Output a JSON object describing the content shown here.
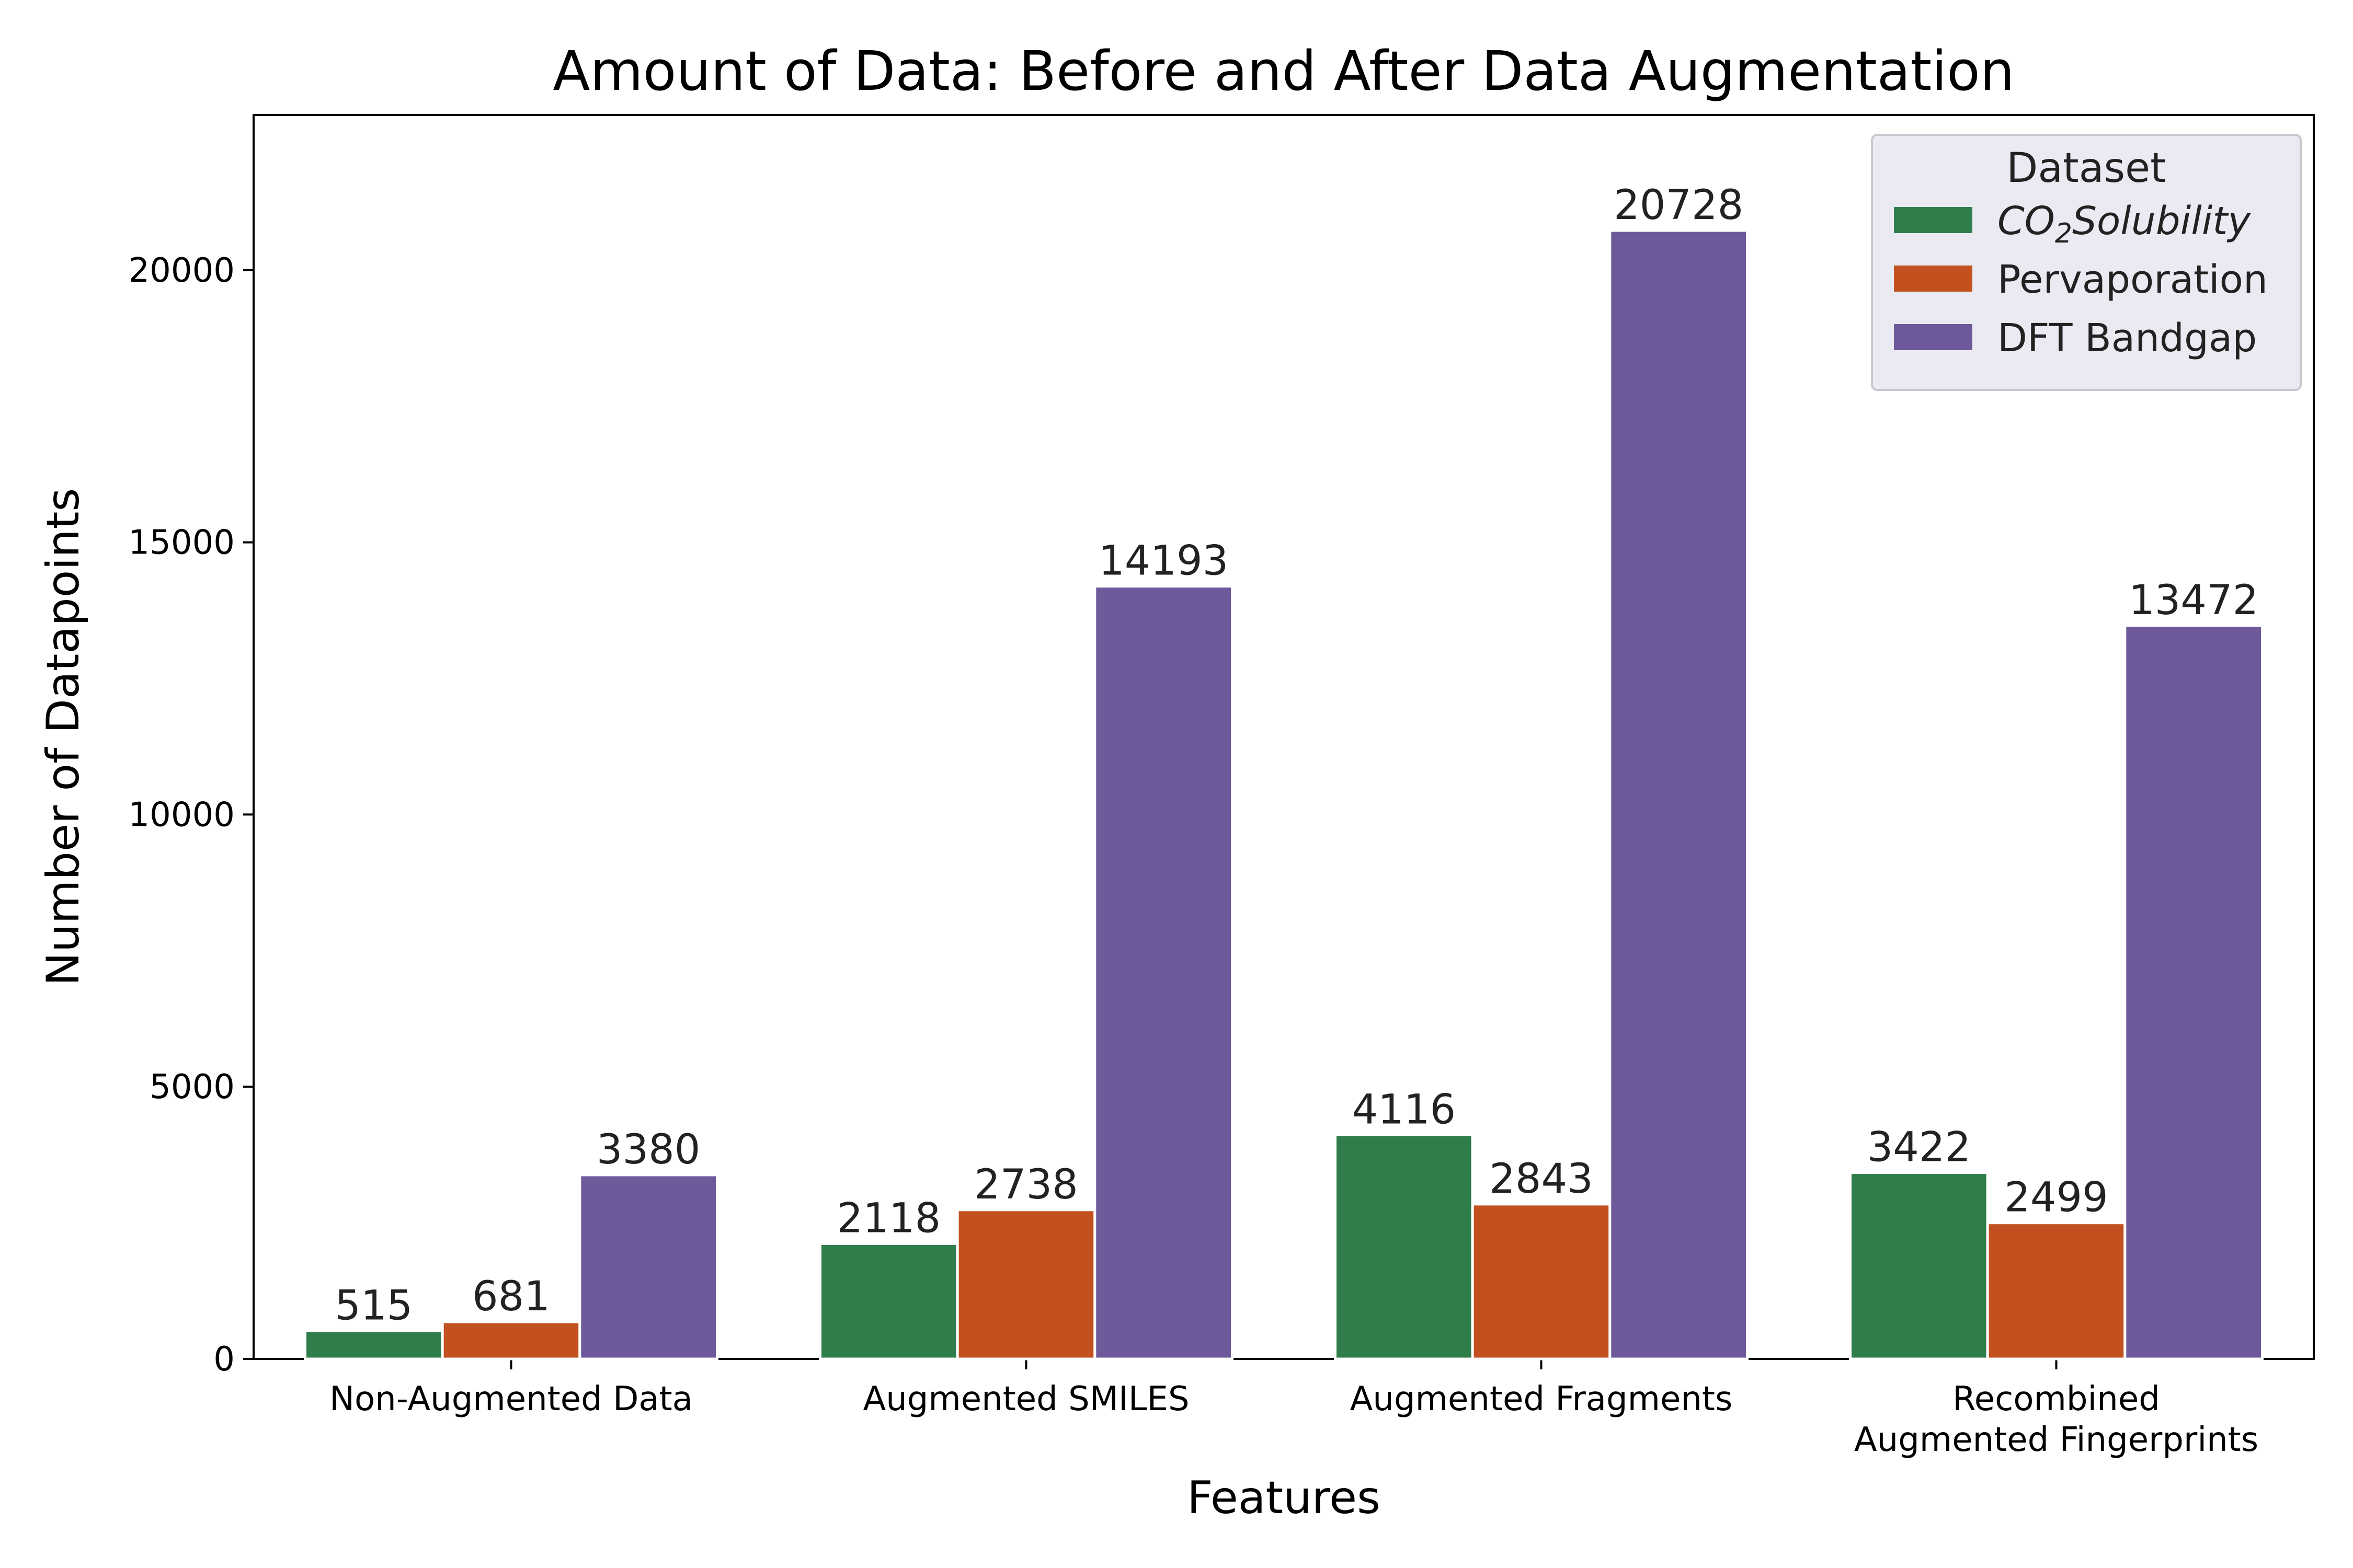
{
  "chart_data": {
    "type": "bar",
    "title": "Amount of Data: Before and After Data Augmentation",
    "xlabel": "Features",
    "ylabel": "Number of Datapoints",
    "categories": [
      [
        "Non-Augmented Data"
      ],
      [
        "Augmented SMILES"
      ],
      [
        "Augmented Fragments"
      ],
      [
        "Recombined",
        "Augmented Fingerprints"
      ]
    ],
    "ylim": [
      0,
      22850
    ],
    "yticks": [
      0,
      5000,
      10000,
      15000,
      20000
    ],
    "grid": false,
    "legend": {
      "title": "Dataset",
      "placement": "top-right"
    },
    "series": [
      {
        "name": "CO2Solubility",
        "name_base": "CO",
        "name_sub": "2",
        "name_rest": "Solubility",
        "italic": true,
        "color": "#2e7d4a",
        "values": [
          515,
          2118,
          4116,
          3422
        ]
      },
      {
        "name": "Pervaporation",
        "color": "#c2511f",
        "values": [
          681,
          2738,
          2843,
          2499
        ]
      },
      {
        "name": "DFT Bandgap",
        "color": "#6e5a9a",
        "values": [
          3380,
          14193,
          20728,
          13472
        ]
      }
    ]
  }
}
